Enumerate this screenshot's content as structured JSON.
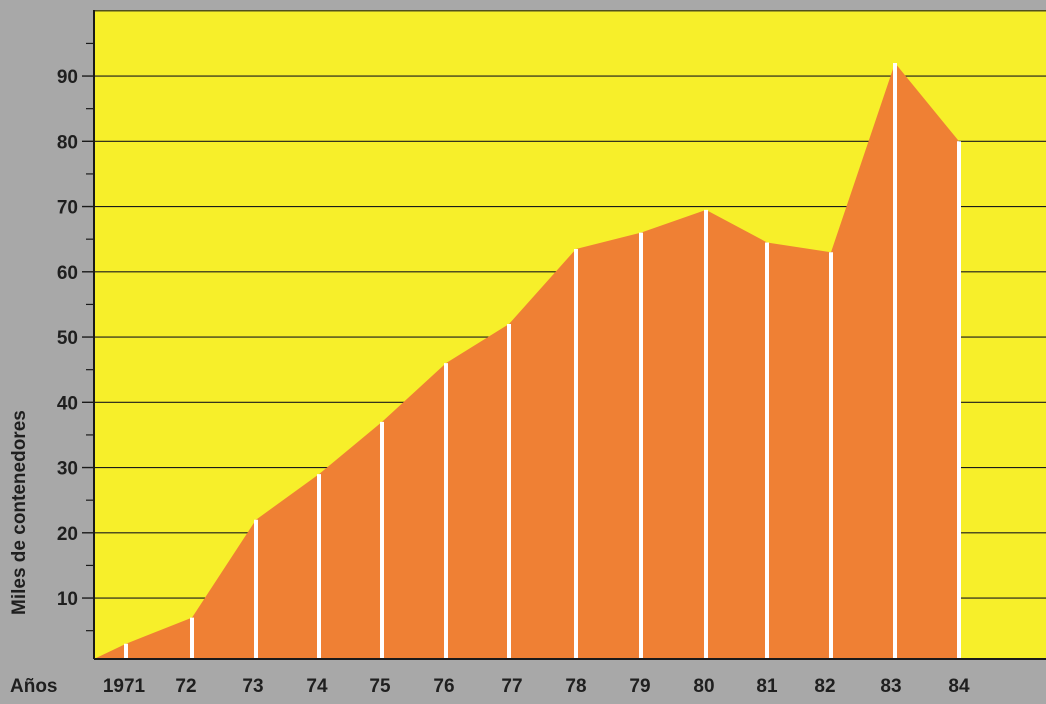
{
  "chart_data": {
    "type": "area",
    "title": "",
    "xlabel": "Años",
    "ylabel": "Miles de contenedores",
    "x": [
      "1971",
      "72",
      "73",
      "74",
      "75",
      "76",
      "77",
      "78",
      "79",
      "80",
      "81",
      "82",
      "83",
      "84"
    ],
    "values": [
      3,
      7,
      22,
      29,
      37,
      46,
      52,
      63.5,
      66,
      69.5,
      64.5,
      63,
      92,
      80
    ],
    "ylim": [
      0,
      100
    ],
    "yticks": [
      10,
      20,
      30,
      40,
      50,
      60,
      70,
      80,
      90
    ],
    "grid": true,
    "colors": {
      "background": "#a8a8a8",
      "plot": "#f7ef2a",
      "area": "#ef8034",
      "gridline": "#1a1a1a",
      "marker_line": "#ffffff",
      "text": "#1f1f1f"
    }
  }
}
